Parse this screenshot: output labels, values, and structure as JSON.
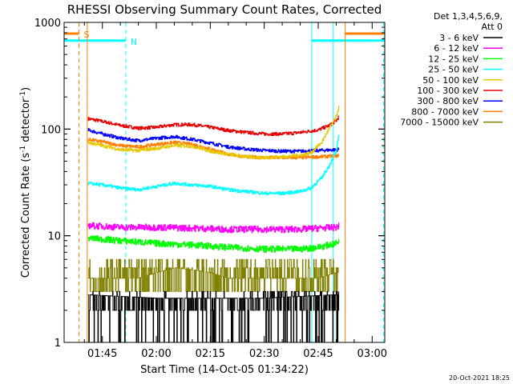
{
  "chart_data": {
    "type": "line",
    "title": "RHESSI Observing Summary Count Rates, Corrected",
    "xlabel": "Start Time (14-Oct-05 01:34:22)",
    "ylabel_parts": {
      "pre": "Corrected Count Rate (s",
      "sup1": "-1",
      "mid": " detector",
      "sup2": "-1",
      "post": ")"
    },
    "yscale": "log",
    "ylim": [
      1,
      1000
    ],
    "xlim_min": [
      94.37,
      183.5
    ],
    "xtick_min": [
      105,
      120,
      135,
      150,
      165,
      180
    ],
    "xtick_labels": [
      "01:45",
      "02:00",
      "02:15",
      "02:30",
      "02:45",
      "03:00"
    ],
    "ytick_vals": [
      1,
      10,
      100,
      1000
    ],
    "ytick_labels": [
      "1",
      "10",
      "100",
      "1000"
    ],
    "grid": false,
    "legend": {
      "placement": "right",
      "header": [
        "Det 1,3,4,5,6,9,",
        "Att 0"
      ],
      "entries": [
        {
          "label": "3 - 6 keV",
          "color": "#000000"
        },
        {
          "label": "6 - 12 keV",
          "color": "#ff00ff"
        },
        {
          "label": "12 - 25 keV",
          "color": "#00ff00"
        },
        {
          "label": "25 - 50 keV",
          "color": "#00ffff"
        },
        {
          "label": "50 - 100 keV",
          "color": "#e6c800"
        },
        {
          "label": "100 - 300 keV",
          "color": "#e60000"
        },
        {
          "label": "300 - 800 keV",
          "color": "#0000ff"
        },
        {
          "label": "800 - 7000 keV",
          "color": "#ff7f00"
        },
        {
          "label": "7000 - 15000 keV",
          "color": "#808000"
        }
      ]
    },
    "flag_bars": [
      {
        "label": "S",
        "color": "#ff7f00",
        "segments": [
          [
            94.4,
            98.5
          ],
          [
            172.5,
            183.5
          ]
        ],
        "level": 0.035
      },
      {
        "label": "N",
        "color": "#00ffff",
        "segments": [
          [
            94.4,
            111.5
          ],
          [
            163.2,
            183.5
          ]
        ],
        "level": 0.057
      }
    ],
    "vlines": [
      {
        "x": 98.5,
        "color": "#ff7f00",
        "dash": true
      },
      {
        "x": 111.5,
        "color": "#00ffff",
        "dash": true
      },
      {
        "x": 100.8,
        "color": "#ff7f00",
        "dash": false
      },
      {
        "x": 163.2,
        "color": "#00ffff",
        "dash": false
      },
      {
        "x": 169.2,
        "color": "#00ffff",
        "dash": false
      },
      {
        "x": 172.5,
        "color": "#ff7f00",
        "dash": false
      },
      {
        "x": 183.2,
        "color": "#00ffff",
        "dash": true
      }
    ],
    "series": [
      {
        "label_ref": 5,
        "color": "#e60000",
        "x": [
          101,
          105,
          110,
          115,
          120,
          125,
          130,
          135,
          140,
          145,
          150,
          155,
          160,
          165,
          168,
          170,
          170.8
        ],
        "y": [
          125,
          118,
          108,
          102,
          104,
          110,
          110,
          104,
          97,
          93,
          90,
          90,
          93,
          98,
          108,
          120,
          132
        ]
      },
      {
        "label_ref": 6,
        "color": "#0000ff",
        "x": [
          101,
          105,
          110,
          115,
          120,
          125,
          130,
          135,
          140,
          145,
          150,
          155,
          160,
          165,
          170,
          170.8
        ],
        "y": [
          98,
          90,
          82,
          78,
          82,
          85,
          80,
          74,
          68,
          65,
          63,
          62,
          62,
          63,
          64,
          65
        ]
      },
      {
        "label_ref": 7,
        "color": "#ff7f00",
        "x": [
          101,
          105,
          110,
          115,
          120,
          125,
          130,
          135,
          140,
          145,
          150,
          155,
          160,
          165,
          170,
          170.8
        ],
        "y": [
          80,
          76,
          70,
          68,
          72,
          75,
          72,
          65,
          58,
          55,
          54,
          54,
          54,
          55,
          56,
          57
        ]
      },
      {
        "label_ref": 4,
        "color": "#e6c800",
        "x": [
          101,
          105,
          110,
          115,
          120,
          125,
          130,
          135,
          140,
          145,
          150,
          155,
          160,
          163,
          166,
          168,
          170,
          170.8
        ],
        "y": [
          75,
          70,
          64,
          63,
          66,
          70,
          69,
          62,
          58,
          55,
          54,
          55,
          57,
          60,
          75,
          100,
          130,
          165
        ]
      },
      {
        "label_ref": 3,
        "color": "#00ffff",
        "x": [
          101,
          105,
          110,
          115,
          120,
          125,
          130,
          135,
          140,
          145,
          150,
          155,
          160,
          163,
          166,
          168,
          170,
          170.8
        ],
        "y": [
          31,
          30,
          28,
          27,
          29,
          31,
          30,
          29,
          27,
          26,
          25,
          25,
          26,
          28,
          35,
          45,
          62,
          88
        ]
      },
      {
        "label_ref": 1,
        "color": "#ff00ff",
        "x": [
          101,
          110,
          120,
          130,
          140,
          150,
          160,
          165,
          170,
          170.8
        ],
        "y": [
          12.5,
          12,
          12,
          11.8,
          11.5,
          11.5,
          11.5,
          11.8,
          12,
          12.5
        ]
      },
      {
        "label_ref": 2,
        "color": "#00ff00",
        "x": [
          101,
          110,
          120,
          130,
          140,
          150,
          160,
          165,
          170,
          170.8
        ],
        "y": [
          9.5,
          9,
          8.5,
          8.2,
          7.8,
          7.5,
          7.5,
          7.8,
          8.5,
          9
        ]
      },
      {
        "label_ref": 8,
        "color": "#808000",
        "x": [
          101,
          105,
          110,
          115,
          120,
          125,
          130,
          135,
          140,
          145,
          150,
          155,
          160,
          165,
          170,
          170.8
        ],
        "y": [
          4,
          4,
          4,
          4,
          4.5,
          5,
          4.8,
          4.5,
          4,
          4,
          4,
          4,
          4,
          4,
          4.5,
          4.5
        ]
      },
      {
        "label_ref": 0,
        "color": "#000000",
        "x": [
          101,
          110,
          120,
          130,
          140,
          150,
          160,
          170,
          170.8
        ],
        "y": [
          2.8,
          2.7,
          2.6,
          2.6,
          2.6,
          2.6,
          2.7,
          2.8,
          2.8
        ]
      }
    ]
  },
  "footer": {
    "timestamp": "20-Oct-2021 18:25"
  }
}
